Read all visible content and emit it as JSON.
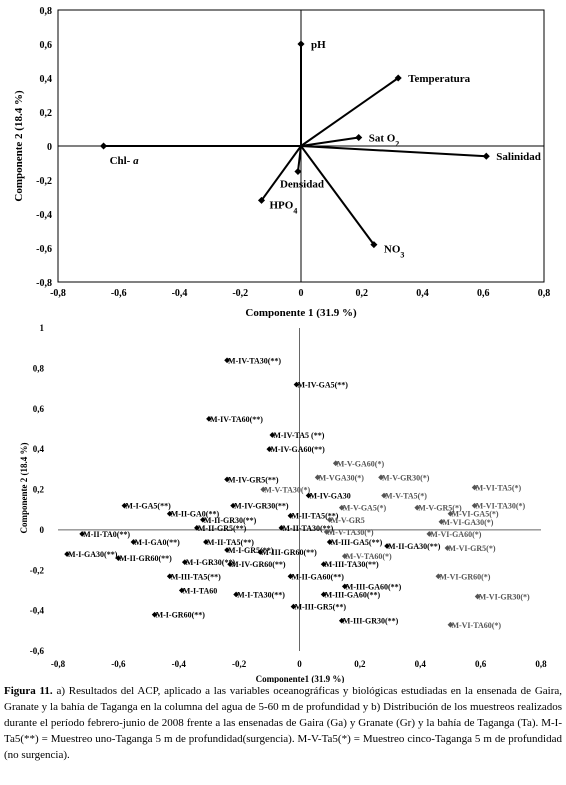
{
  "chart_data": [
    {
      "type": "scatter",
      "subtype": "biplot-vectors",
      "title": "",
      "xlabel": "Componente 1 (31.9 %)",
      "ylabel": "Componente 2 (18.4 %)",
      "xlim": [
        -0.8,
        0.8
      ],
      "ylim": [
        -0.8,
        0.8
      ],
      "xticks": [
        "-0,8",
        "-0,6",
        "-0,4",
        "-0,2",
        "0",
        "0,2",
        "0,4",
        "0,6",
        "0,8"
      ],
      "yticks": [
        "0,8",
        "0,6",
        "0,4",
        "0,2",
        "0",
        "-0,2",
        "-0,4",
        "-0,6",
        "-0,8"
      ],
      "points": [
        {
          "label": "pH",
          "x": 0.0,
          "y": 0.6
        },
        {
          "label": "Temperatura",
          "x": 0.32,
          "y": 0.4
        },
        {
          "label": "Sat O",
          "sub": "2",
          "x": 0.19,
          "y": 0.05
        },
        {
          "label": "Salinidad",
          "x": 0.61,
          "y": -0.06
        },
        {
          "label": "Chl- ",
          "italic": "a",
          "x": -0.65,
          "y": 0.0
        },
        {
          "label": "Densidad",
          "x": -0.01,
          "y": -0.15
        },
        {
          "label": "HPO",
          "sub": "4",
          "x": -0.13,
          "y": -0.32
        },
        {
          "label": "NO",
          "sub": "3",
          "x": 0.24,
          "y": -0.58
        }
      ]
    },
    {
      "type": "scatter",
      "title": "",
      "xlabel": "Componente1 (31.9 %)",
      "ylabel": "Componente 2 (18.4 %)",
      "xlim": [
        -0.8,
        0.8
      ],
      "ylim": [
        -0.6,
        1.0
      ],
      "xticks": [
        "-0,8",
        "-0,6",
        "-0,4",
        "-0,2",
        "0",
        "0,2",
        "0,4",
        "0,6",
        "0,8"
      ],
      "yticks": [
        "1",
        "0,8",
        "0,6",
        "0,4",
        "0,2",
        "0",
        "-0,2",
        "-0,4",
        "-0,6"
      ],
      "points": [
        {
          "label": "M-IV-TA30(**)",
          "x": -0.24,
          "y": 0.84,
          "c": "#000000"
        },
        {
          "label": "M-IV-GA5(**)",
          "x": -0.01,
          "y": 0.72,
          "c": "#000000"
        },
        {
          "label": "M-IV-TA60(**)",
          "x": -0.3,
          "y": 0.55,
          "c": "#000000"
        },
        {
          "label": "M-IV-TA5 (**)",
          "x": -0.09,
          "y": 0.47,
          "c": "#000000"
        },
        {
          "label": "M-IV-GA60(**)",
          "x": -0.1,
          "y": 0.4,
          "c": "#000000"
        },
        {
          "label": "M-V-GA60(*)",
          "x": 0.12,
          "y": 0.33,
          "c": "#555555"
        },
        {
          "label": "M-VGA30(*)",
          "x": 0.06,
          "y": 0.26,
          "c": "#555555"
        },
        {
          "label": "M-V-GR30(*)",
          "x": 0.27,
          "y": 0.26,
          "c": "#555555"
        },
        {
          "label": "M-IV-GR5(**)",
          "x": -0.24,
          "y": 0.25,
          "c": "#000000"
        },
        {
          "label": "M-V-TA30(*)",
          "x": -0.12,
          "y": 0.2,
          "c": "#555555"
        },
        {
          "label": "M-VI-TA5(*)",
          "x": 0.58,
          "y": 0.21,
          "c": "#555555"
        },
        {
          "label": "M-IV-GA30",
          "x": 0.03,
          "y": 0.17,
          "c": "#000000"
        },
        {
          "label": "M-V-TA5(*)",
          "x": 0.28,
          "y": 0.17,
          "c": "#555555"
        },
        {
          "label": "M-I-GA5(**)",
          "x": -0.58,
          "y": 0.12,
          "c": "#000000"
        },
        {
          "label": "M-IV-GR30(**)",
          "x": -0.22,
          "y": 0.12,
          "c": "#000000"
        },
        {
          "label": "M-V-GA5(*)",
          "x": 0.14,
          "y": 0.11,
          "c": "#555555"
        },
        {
          "label": "M-V-GR5(*)",
          "x": 0.39,
          "y": 0.11,
          "c": "#555555"
        },
        {
          "label": "M-VI-TA30(*)",
          "x": 0.58,
          "y": 0.12,
          "c": "#555555"
        },
        {
          "label": "M-VI-GA5(*)",
          "x": 0.5,
          "y": 0.08,
          "c": "#555555"
        },
        {
          "label": "M-II-GA0(**)",
          "x": -0.43,
          "y": 0.08,
          "c": "#000000"
        },
        {
          "label": "M-II-TA5(**)",
          "x": -0.03,
          "y": 0.07,
          "c": "#000000"
        },
        {
          "label": "M-V-GR5",
          "x": 0.1,
          "y": 0.05,
          "c": "#555555"
        },
        {
          "label": "M-VI-GA30(*)",
          "x": 0.47,
          "y": 0.04,
          "c": "#555555"
        },
        {
          "label": "M-II-GR30(**)",
          "x": -0.32,
          "y": 0.05,
          "c": "#000000"
        },
        {
          "label": "M-II-GR5(**)",
          "x": -0.34,
          "y": 0.01,
          "c": "#000000"
        },
        {
          "label": "M-II-TA30(**)",
          "x": -0.06,
          "y": 0.01,
          "c": "#000000"
        },
        {
          "label": "M-II-TA0(**)",
          "x": -0.72,
          "y": -0.02,
          "c": "#000000"
        },
        {
          "label": "M-V-TA30(*)",
          "x": 0.09,
          "y": -0.01,
          "c": "#555555"
        },
        {
          "label": "M-VI-GA60(*)",
          "x": 0.43,
          "y": -0.02,
          "c": "#555555"
        },
        {
          "label": "M-I-GA0(**)",
          "x": -0.55,
          "y": -0.06,
          "c": "#000000"
        },
        {
          "label": "M-II-TA5(**)",
          "x": -0.31,
          "y": -0.06,
          "c": "#000000"
        },
        {
          "label": "M-III-GA5(**)",
          "x": 0.1,
          "y": -0.06,
          "c": "#000000"
        },
        {
          "label": "M-II-GA30(**)",
          "x": 0.29,
          "y": -0.08,
          "c": "#000000"
        },
        {
          "label": "M-VI-GR5(*)",
          "x": 0.49,
          "y": -0.09,
          "c": "#555555"
        },
        {
          "label": "M-I-GR5(**)",
          "x": -0.24,
          "y": -0.1,
          "c": "#000000"
        },
        {
          "label": "M-III-GR60(**)",
          "x": -0.13,
          "y": -0.11,
          "c": "#000000"
        },
        {
          "label": "M-V-TA60(*)",
          "x": 0.15,
          "y": -0.13,
          "c": "#555555"
        },
        {
          "label": "M-I-GA30(**)",
          "x": -0.77,
          "y": -0.12,
          "c": "#000000"
        },
        {
          "label": "M-II-GR60(**)",
          "x": -0.6,
          "y": -0.14,
          "c": "#000000"
        },
        {
          "label": "M-I-GR30(**)",
          "x": -0.38,
          "y": -0.16,
          "c": "#000000"
        },
        {
          "label": "M-IV-GR60(**)",
          "x": -0.23,
          "y": -0.17,
          "c": "#000000"
        },
        {
          "label": "M-III-TA30(**)",
          "x": 0.08,
          "y": -0.17,
          "c": "#000000"
        },
        {
          "label": "M-III-TA5(**)",
          "x": -0.43,
          "y": -0.23,
          "c": "#000000"
        },
        {
          "label": "M-II-GA60(**)",
          "x": -0.03,
          "y": -0.23,
          "c": "#000000"
        },
        {
          "label": "M-VI-GR60(*)",
          "x": 0.46,
          "y": -0.23,
          "c": "#555555"
        },
        {
          "label": "M-III-GA60(**)",
          "x": 0.15,
          "y": -0.28,
          "c": "#000000"
        },
        {
          "label": "M-I-TA60",
          "x": -0.39,
          "y": -0.3,
          "c": "#000000"
        },
        {
          "label": "M-I-TA30(**)",
          "x": -0.21,
          "y": -0.32,
          "c": "#000000"
        },
        {
          "label": "M-III-GA60(**)",
          "x": 0.08,
          "y": -0.32,
          "c": "#000000"
        },
        {
          "label": "M-VI-GR30(*)",
          "x": 0.59,
          "y": -0.33,
          "c": "#555555"
        },
        {
          "label": "M-III-GR5(**)",
          "x": -0.02,
          "y": -0.38,
          "c": "#000000"
        },
        {
          "label": "M-I-GR60(**)",
          "x": -0.48,
          "y": -0.42,
          "c": "#000000"
        },
        {
          "label": "M-III-GR30(**)",
          "x": 0.14,
          "y": -0.45,
          "c": "#000000"
        },
        {
          "label": "M-VI-TA60(*)",
          "x": 0.5,
          "y": -0.47,
          "c": "#555555"
        }
      ]
    }
  ],
  "caption": {
    "label": "Figura 11.",
    "text": " a) Resultados del ACP, aplicado a las variables oceanográficas y biológicas estudiadas en la ensenada de Gaira, Granate y la bahía  de Taganga en la columna del agua de 5-60 m de profundidad y b) Distribución de los muestreos realizados durante el período febrero-junio de 2008 frente a las ensenadas de Gaira (Ga) y Granate (Gr) y  la bahía de Taganga (Ta). M-I-Ta5(**) = Muestreo uno-Taganga 5 m de profundidad(surgencia). M-V-Ta5(*) = Muestreo cinco-Taganga 5 m de profundidad (no surgencia)."
  }
}
